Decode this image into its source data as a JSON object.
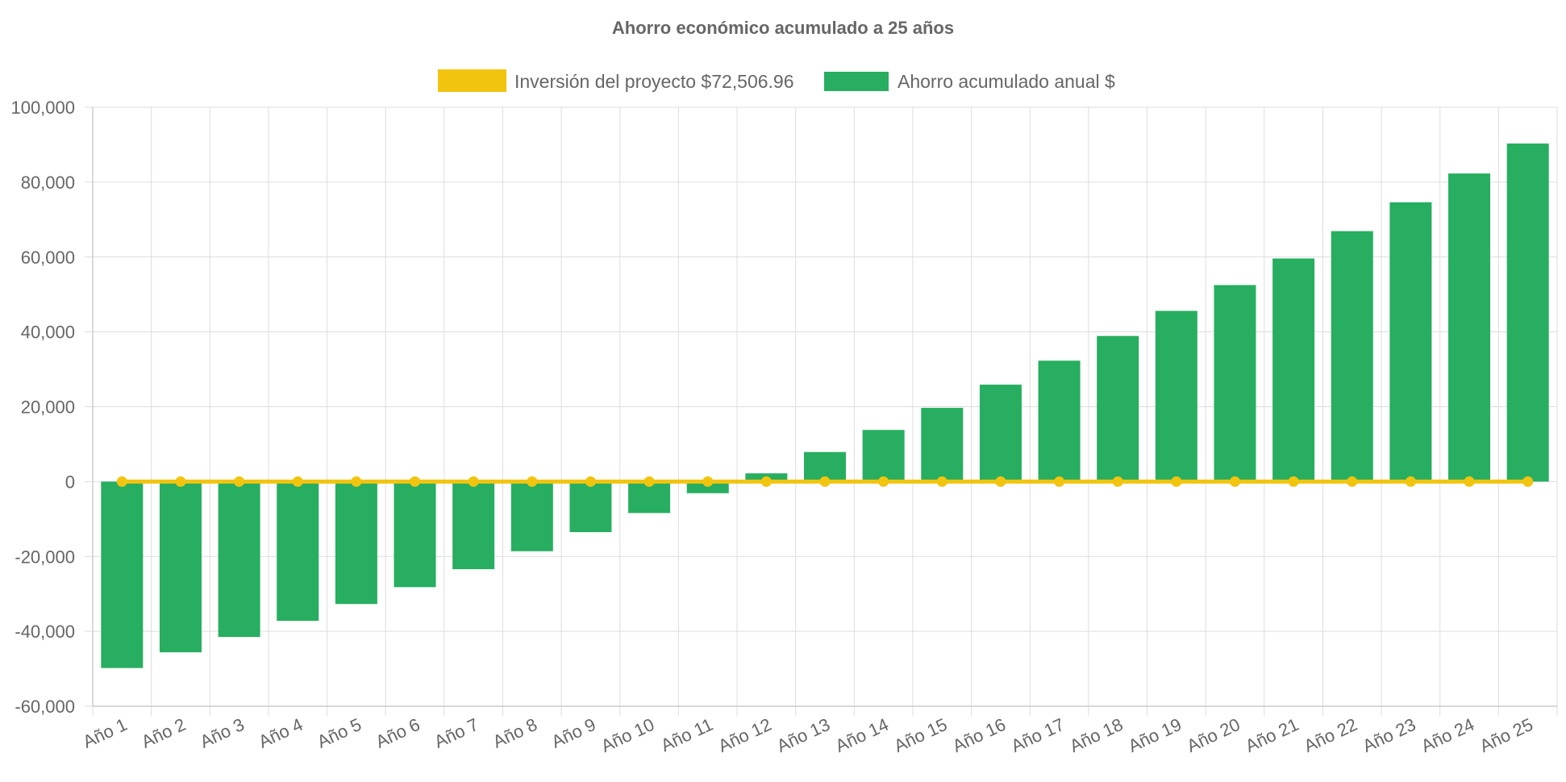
{
  "chart_data": {
    "type": "bar",
    "title": "Ahorro económico acumulado a 25 años",
    "xlabel": "",
    "ylabel": "",
    "ylim": [
      -60000,
      100000
    ],
    "yticks": [
      100000,
      80000,
      60000,
      40000,
      20000,
      0,
      -20000,
      -40000,
      -60000
    ],
    "ytick_labels": [
      "100,000",
      "80,000",
      "60,000",
      "40,000",
      "20,000",
      "0",
      "-20,000",
      "-40,000",
      "-60,000"
    ],
    "grid": true,
    "legend_position": "top-center",
    "categories": [
      "Año 1",
      "Año 2",
      "Año 3",
      "Año 4",
      "Año 5",
      "Año 6",
      "Año 7",
      "Año 8",
      "Año 9",
      "Año 10",
      "Año 11",
      "Año 12",
      "Año 13",
      "Año 14",
      "Año 15",
      "Año 16",
      "Año 17",
      "Año 18",
      "Año 19",
      "Año 20",
      "Año 21",
      "Año 22",
      "Año 23",
      "Año 24",
      "Año 25"
    ],
    "series": [
      {
        "name": "Inversión del proyecto $72,506.96",
        "type": "line",
        "color": "#f1c40f",
        "values": [
          0,
          0,
          0,
          0,
          0,
          0,
          0,
          0,
          0,
          0,
          0,
          0,
          0,
          0,
          0,
          0,
          0,
          0,
          0,
          0,
          0,
          0,
          0,
          0,
          0
        ]
      },
      {
        "name": "Ahorro acumulado anual $",
        "type": "bar",
        "color": "#27ae60",
        "values": [
          -49800,
          -45600,
          -41500,
          -37200,
          -32700,
          -28200,
          -23400,
          -18600,
          -13500,
          -8400,
          -3100,
          2200,
          7900,
          13800,
          19700,
          25900,
          32300,
          38900,
          45600,
          52500,
          59600,
          66900,
          74600,
          82300,
          90300
        ]
      }
    ]
  }
}
